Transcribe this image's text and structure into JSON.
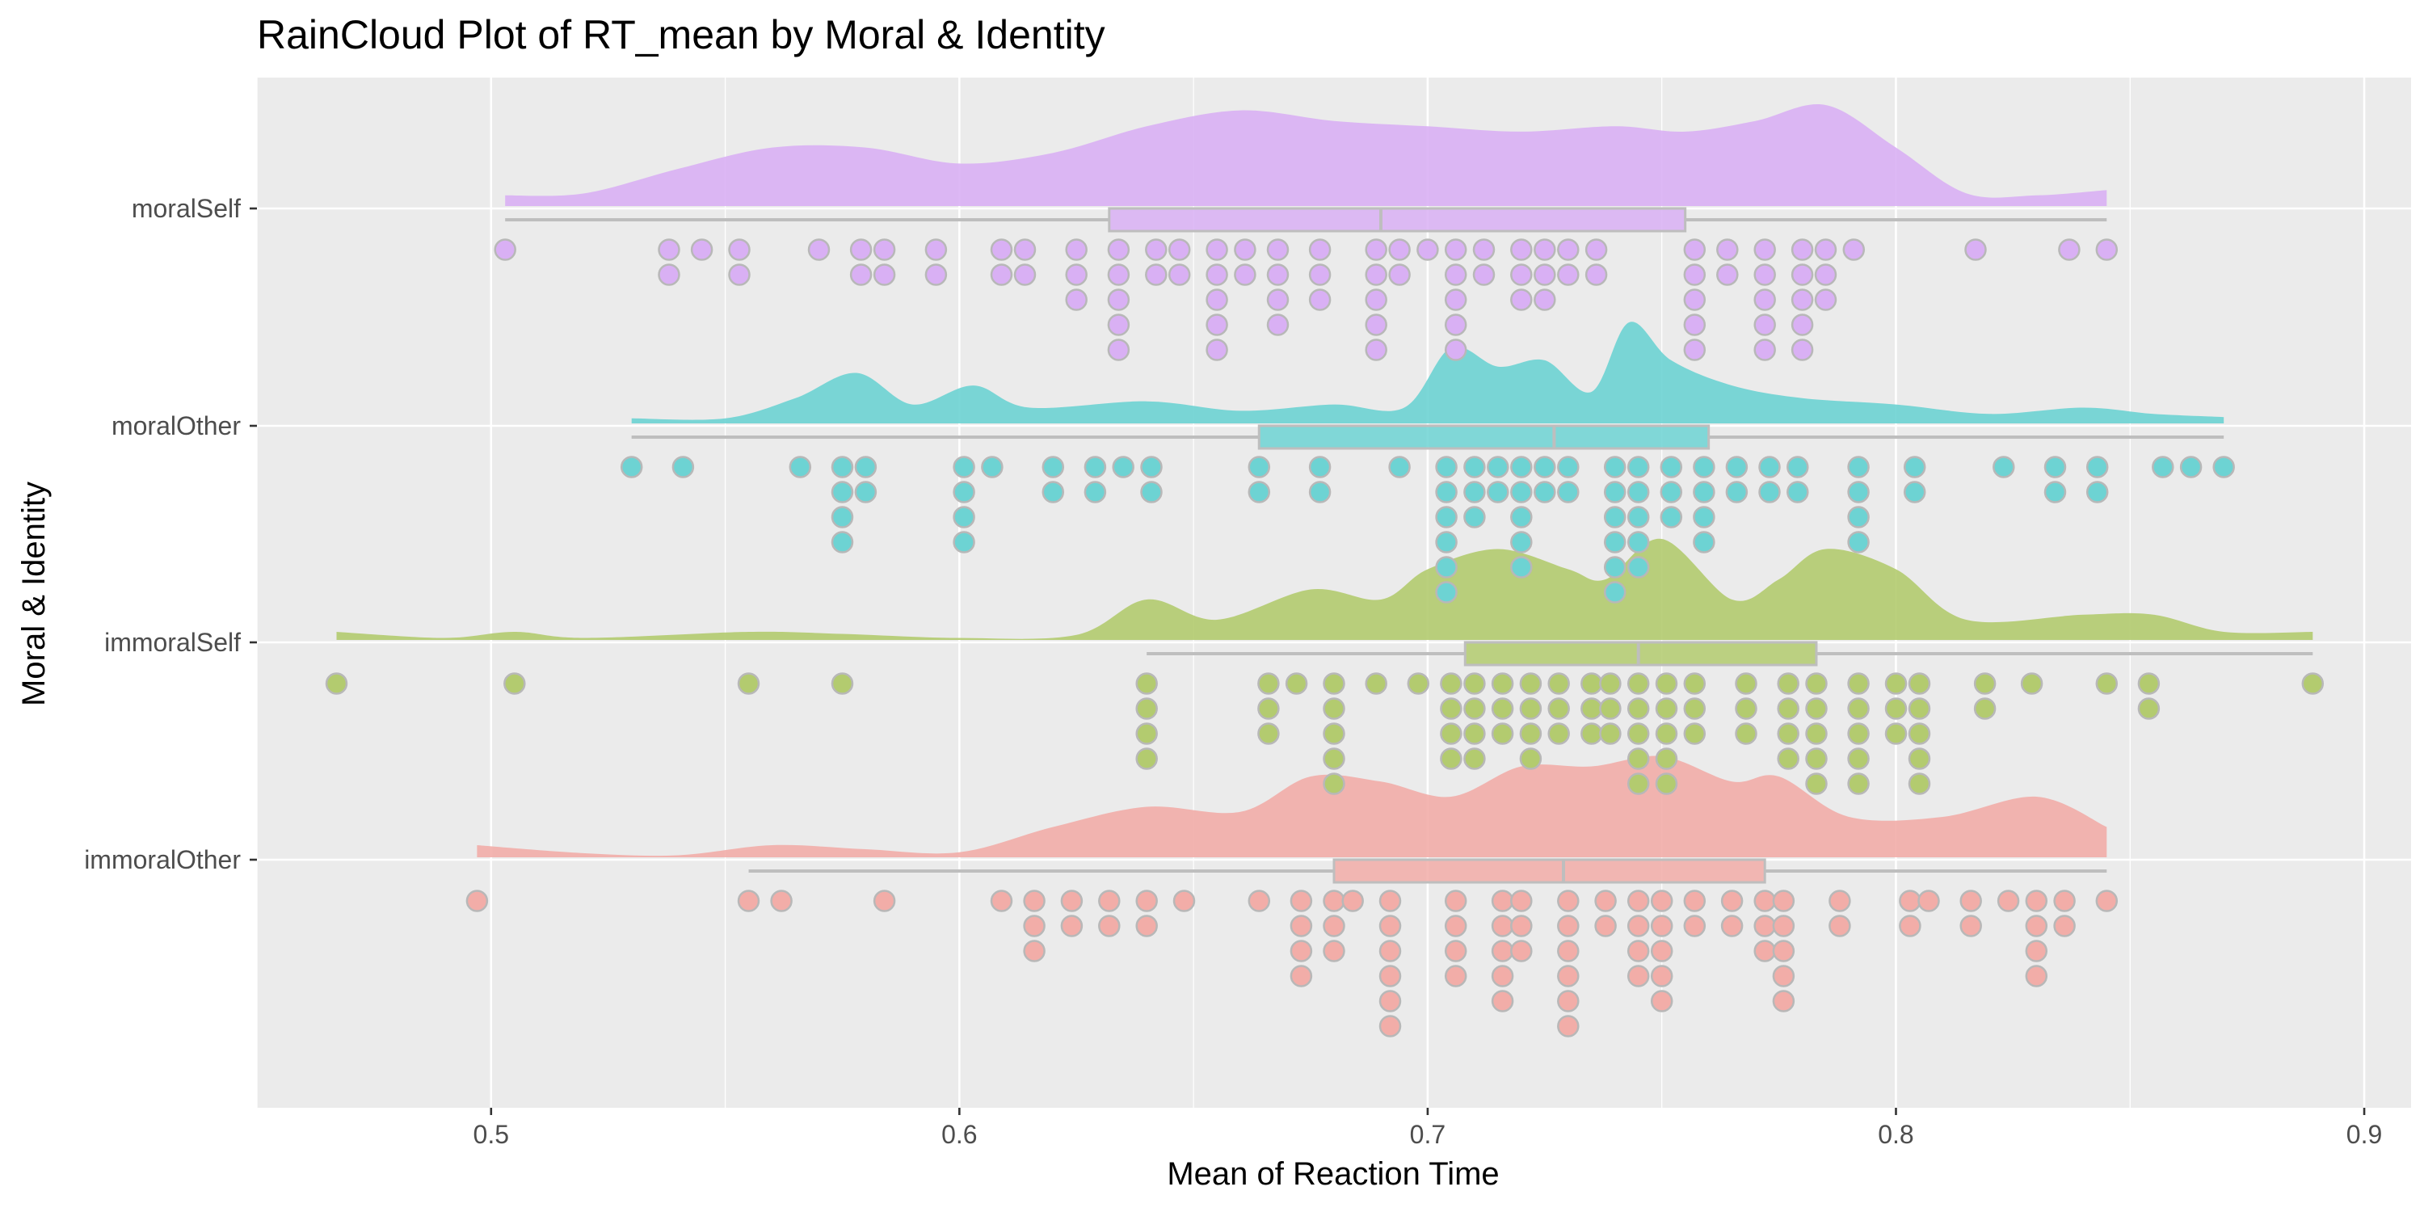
{
  "chart_data": {
    "type": "raincloud",
    "title": "RainCloud Plot of RT_mean by Moral & Identity",
    "xlabel": "Mean of Reaction Time",
    "ylabel": "Moral & Identity",
    "xlim": [
      0.45,
      0.91
    ],
    "x_ticks": [
      "0.5",
      "0.6",
      "0.7",
      "0.8",
      "0.9"
    ],
    "grid": true,
    "legend": "none",
    "colors": {
      "panel_bg": "#ebebeb",
      "grid": "#ffffff",
      "box": "#bebebe",
      "dot_stroke": "#b8b8b8"
    },
    "groups": [
      {
        "name": "moralSelf",
        "color": "#d9b0f4",
        "box": {
          "min": 0.503,
          "q1": 0.632,
          "median": 0.69,
          "q3": 0.755,
          "max": 0.845
        },
        "density": [
          [
            0.503,
            0.1
          ],
          [
            0.52,
            0.12
          ],
          [
            0.54,
            0.35
          ],
          [
            0.56,
            0.55
          ],
          [
            0.58,
            0.55
          ],
          [
            0.6,
            0.4
          ],
          [
            0.62,
            0.5
          ],
          [
            0.64,
            0.75
          ],
          [
            0.66,
            0.9
          ],
          [
            0.68,
            0.8
          ],
          [
            0.7,
            0.75
          ],
          [
            0.72,
            0.7
          ],
          [
            0.74,
            0.75
          ],
          [
            0.755,
            0.7
          ],
          [
            0.77,
            0.8
          ],
          [
            0.785,
            0.95
          ],
          [
            0.8,
            0.55
          ],
          [
            0.815,
            0.12
          ],
          [
            0.83,
            0.1
          ],
          [
            0.845,
            0.15
          ]
        ],
        "points": [
          0.503,
          0.538,
          0.538,
          0.545,
          0.553,
          0.553,
          0.57,
          0.579,
          0.579,
          0.584,
          0.584,
          0.595,
          0.595,
          0.609,
          0.609,
          0.614,
          0.614,
          0.625,
          0.625,
          0.625,
          0.634,
          0.634,
          0.634,
          0.634,
          0.634,
          0.642,
          0.642,
          0.647,
          0.647,
          0.655,
          0.655,
          0.655,
          0.655,
          0.655,
          0.661,
          0.661,
          0.668,
          0.668,
          0.668,
          0.668,
          0.677,
          0.677,
          0.677,
          0.689,
          0.689,
          0.689,
          0.689,
          0.689,
          0.694,
          0.694,
          0.7,
          0.706,
          0.706,
          0.706,
          0.706,
          0.706,
          0.712,
          0.712,
          0.72,
          0.72,
          0.72,
          0.725,
          0.725,
          0.725,
          0.73,
          0.73,
          0.736,
          0.736,
          0.757,
          0.757,
          0.757,
          0.757,
          0.757,
          0.764,
          0.764,
          0.772,
          0.772,
          0.772,
          0.772,
          0.772,
          0.78,
          0.78,
          0.78,
          0.78,
          0.78,
          0.785,
          0.785,
          0.785,
          0.791,
          0.817,
          0.837,
          0.845
        ]
      },
      {
        "name": "moralOther",
        "color": "#6dd3d3",
        "box": {
          "min": 0.53,
          "q1": 0.664,
          "median": 0.727,
          "q3": 0.76,
          "max": 0.87
        },
        "density": [
          [
            0.53,
            0.08
          ],
          [
            0.55,
            0.08
          ],
          [
            0.565,
            0.4
          ],
          [
            0.578,
            0.8
          ],
          [
            0.59,
            0.3
          ],
          [
            0.603,
            0.6
          ],
          [
            0.615,
            0.25
          ],
          [
            0.64,
            0.35
          ],
          [
            0.66,
            0.2
          ],
          [
            0.68,
            0.3
          ],
          [
            0.695,
            0.25
          ],
          [
            0.705,
            1.2
          ],
          [
            0.715,
            0.9
          ],
          [
            0.725,
            1.0
          ],
          [
            0.735,
            0.5
          ],
          [
            0.743,
            1.6
          ],
          [
            0.752,
            1.0
          ],
          [
            0.765,
            0.6
          ],
          [
            0.78,
            0.4
          ],
          [
            0.8,
            0.3
          ],
          [
            0.82,
            0.15
          ],
          [
            0.84,
            0.25
          ],
          [
            0.855,
            0.15
          ],
          [
            0.87,
            0.1
          ]
        ],
        "points": [
          0.53,
          0.541,
          0.566,
          0.575,
          0.575,
          0.575,
          0.575,
          0.58,
          0.58,
          0.601,
          0.601,
          0.601,
          0.601,
          0.607,
          0.62,
          0.62,
          0.629,
          0.629,
          0.635,
          0.641,
          0.641,
          0.664,
          0.664,
          0.677,
          0.677,
          0.694,
          0.704,
          0.704,
          0.704,
          0.704,
          0.704,
          0.704,
          0.71,
          0.71,
          0.71,
          0.715,
          0.715,
          0.72,
          0.72,
          0.72,
          0.72,
          0.72,
          0.725,
          0.725,
          0.73,
          0.73,
          0.74,
          0.74,
          0.74,
          0.74,
          0.74,
          0.74,
          0.745,
          0.745,
          0.745,
          0.745,
          0.745,
          0.752,
          0.752,
          0.752,
          0.759,
          0.759,
          0.759,
          0.759,
          0.766,
          0.766,
          0.773,
          0.773,
          0.779,
          0.779,
          0.792,
          0.792,
          0.792,
          0.792,
          0.804,
          0.804,
          0.823,
          0.834,
          0.834,
          0.843,
          0.843,
          0.857,
          0.863,
          0.87
        ]
      },
      {
        "name": "immoralSelf",
        "color": "#b3cb6f",
        "box": {
          "min": 0.64,
          "q1": 0.708,
          "median": 0.745,
          "q3": 0.783,
          "max": 0.889
        },
        "density": [
          [
            0.467,
            0.08
          ],
          [
            0.49,
            0.02
          ],
          [
            0.505,
            0.08
          ],
          [
            0.52,
            0.02
          ],
          [
            0.555,
            0.08
          ],
          [
            0.575,
            0.06
          ],
          [
            0.6,
            0.02
          ],
          [
            0.625,
            0.05
          ],
          [
            0.64,
            0.4
          ],
          [
            0.655,
            0.2
          ],
          [
            0.675,
            0.5
          ],
          [
            0.69,
            0.4
          ],
          [
            0.7,
            0.7
          ],
          [
            0.715,
            0.9
          ],
          [
            0.73,
            0.7
          ],
          [
            0.738,
            0.6
          ],
          [
            0.75,
            1.0
          ],
          [
            0.765,
            0.4
          ],
          [
            0.775,
            0.6
          ],
          [
            0.785,
            0.9
          ],
          [
            0.8,
            0.7
          ],
          [
            0.815,
            0.2
          ],
          [
            0.84,
            0.25
          ],
          [
            0.855,
            0.25
          ],
          [
            0.87,
            0.08
          ],
          [
            0.889,
            0.08
          ]
        ],
        "points": [
          0.467,
          0.505,
          0.555,
          0.575,
          0.64,
          0.64,
          0.64,
          0.64,
          0.666,
          0.666,
          0.666,
          0.672,
          0.68,
          0.68,
          0.68,
          0.68,
          0.68,
          0.689,
          0.698,
          0.705,
          0.705,
          0.705,
          0.705,
          0.71,
          0.71,
          0.71,
          0.71,
          0.716,
          0.716,
          0.716,
          0.722,
          0.722,
          0.722,
          0.722,
          0.728,
          0.728,
          0.728,
          0.735,
          0.735,
          0.735,
          0.739,
          0.739,
          0.739,
          0.745,
          0.745,
          0.745,
          0.745,
          0.745,
          0.751,
          0.751,
          0.751,
          0.751,
          0.751,
          0.757,
          0.757,
          0.757,
          0.768,
          0.768,
          0.768,
          0.777,
          0.777,
          0.777,
          0.777,
          0.783,
          0.783,
          0.783,
          0.783,
          0.783,
          0.792,
          0.792,
          0.792,
          0.792,
          0.792,
          0.8,
          0.8,
          0.8,
          0.805,
          0.805,
          0.805,
          0.805,
          0.805,
          0.819,
          0.819,
          0.829,
          0.845,
          0.854,
          0.854,
          0.889
        ]
      },
      {
        "name": "immoralOther",
        "color": "#f2ada8",
        "box": {
          "min": 0.555,
          "q1": 0.68,
          "median": 0.729,
          "q3": 0.772,
          "max": 0.845
        },
        "density": [
          [
            0.497,
            0.12
          ],
          [
            0.52,
            0.04
          ],
          [
            0.54,
            0.02
          ],
          [
            0.56,
            0.12
          ],
          [
            0.58,
            0.08
          ],
          [
            0.6,
            0.05
          ],
          [
            0.62,
            0.3
          ],
          [
            0.64,
            0.5
          ],
          [
            0.66,
            0.45
          ],
          [
            0.675,
            0.8
          ],
          [
            0.69,
            0.75
          ],
          [
            0.705,
            0.6
          ],
          [
            0.72,
            0.9
          ],
          [
            0.735,
            0.9
          ],
          [
            0.75,
            1.0
          ],
          [
            0.765,
            0.75
          ],
          [
            0.775,
            0.8
          ],
          [
            0.79,
            0.4
          ],
          [
            0.81,
            0.4
          ],
          [
            0.83,
            0.6
          ],
          [
            0.845,
            0.3
          ]
        ],
        "points": [
          0.497,
          0.555,
          0.562,
          0.584,
          0.609,
          0.616,
          0.616,
          0.616,
          0.624,
          0.624,
          0.632,
          0.632,
          0.64,
          0.64,
          0.648,
          0.664,
          0.673,
          0.673,
          0.673,
          0.673,
          0.68,
          0.68,
          0.68,
          0.684,
          0.692,
          0.692,
          0.692,
          0.692,
          0.692,
          0.692,
          0.706,
          0.706,
          0.706,
          0.706,
          0.716,
          0.716,
          0.716,
          0.716,
          0.716,
          0.72,
          0.72,
          0.72,
          0.73,
          0.73,
          0.73,
          0.73,
          0.73,
          0.73,
          0.738,
          0.738,
          0.745,
          0.745,
          0.745,
          0.745,
          0.75,
          0.75,
          0.75,
          0.75,
          0.75,
          0.757,
          0.757,
          0.765,
          0.765,
          0.772,
          0.772,
          0.772,
          0.776,
          0.776,
          0.776,
          0.776,
          0.776,
          0.788,
          0.788,
          0.803,
          0.803,
          0.807,
          0.816,
          0.816,
          0.824,
          0.83,
          0.83,
          0.83,
          0.83,
          0.836,
          0.836,
          0.845
        ]
      }
    ]
  }
}
